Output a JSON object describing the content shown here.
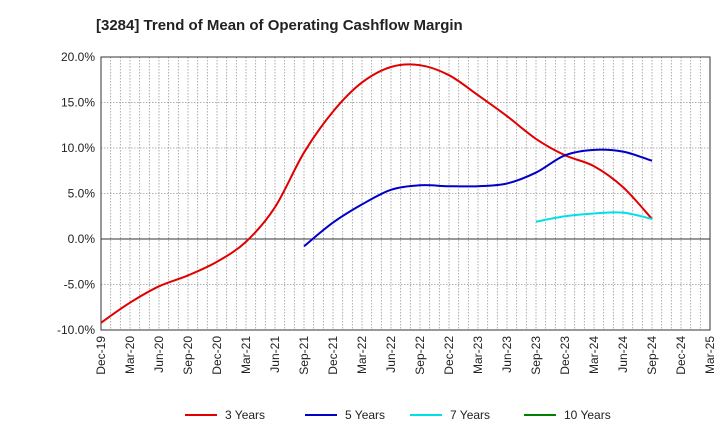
{
  "chart_data": {
    "type": "line",
    "title": "[3284]  Trend of Mean of Operating Cashflow Margin",
    "xlabel": "",
    "ylabel": "",
    "categories": [
      "Dec-19",
      "Mar-20",
      "Jun-20",
      "Sep-20",
      "Dec-20",
      "Mar-21",
      "Jun-21",
      "Sep-21",
      "Dec-21",
      "Mar-22",
      "Jun-22",
      "Sep-22",
      "Dec-22",
      "Mar-23",
      "Jun-23",
      "Sep-23",
      "Dec-23",
      "Mar-24",
      "Jun-24",
      "Sep-24",
      "Dec-24",
      "Mar-25"
    ],
    "ylim": [
      -10,
      20
    ],
    "yticks": [
      20,
      15,
      10,
      5,
      0,
      -5,
      -10
    ],
    "ytick_labels": [
      "20.0%",
      "15.0%",
      "10.0%",
      "5.0%",
      "0.0%",
      "-5.0%",
      "-10.0%"
    ],
    "grid": true,
    "legend_position": "bottom",
    "series": [
      {
        "name": "3 Years",
        "color": "#e00000",
        "x": [
          "Dec-19",
          "Mar-20",
          "Jun-20",
          "Sep-20",
          "Dec-20",
          "Mar-21",
          "Jun-21",
          "Sep-21",
          "Dec-21",
          "Mar-22",
          "Jun-22",
          "Sep-22",
          "Dec-22",
          "Mar-23",
          "Jun-23",
          "Sep-23",
          "Dec-23",
          "Mar-24",
          "Jun-24",
          "Sep-24"
        ],
        "values": [
          -9.2,
          -7.0,
          -5.2,
          -4.0,
          -2.5,
          -0.3,
          3.5,
          9.5,
          14.0,
          17.2,
          18.9,
          19.1,
          18.0,
          15.8,
          13.5,
          11.0,
          9.2,
          8.0,
          5.7,
          2.2
        ]
      },
      {
        "name": "5 Years",
        "color": "#0000c8",
        "x": [
          "Sep-21",
          "Dec-21",
          "Mar-22",
          "Jun-22",
          "Sep-22",
          "Dec-22",
          "Mar-23",
          "Jun-23",
          "Sep-23",
          "Dec-23",
          "Mar-24",
          "Jun-24",
          "Sep-24"
        ],
        "values": [
          -0.8,
          1.8,
          3.8,
          5.4,
          5.9,
          5.8,
          5.8,
          6.1,
          7.3,
          9.2,
          9.8,
          9.6,
          8.6
        ]
      },
      {
        "name": "7 Years",
        "color": "#00e0e8",
        "x": [
          "Sep-23",
          "Dec-23",
          "Mar-24",
          "Jun-24",
          "Sep-24"
        ],
        "values": [
          1.9,
          2.5,
          2.8,
          2.9,
          2.2
        ]
      },
      {
        "name": "10 Years",
        "color": "#008000",
        "x": [],
        "values": []
      }
    ]
  }
}
